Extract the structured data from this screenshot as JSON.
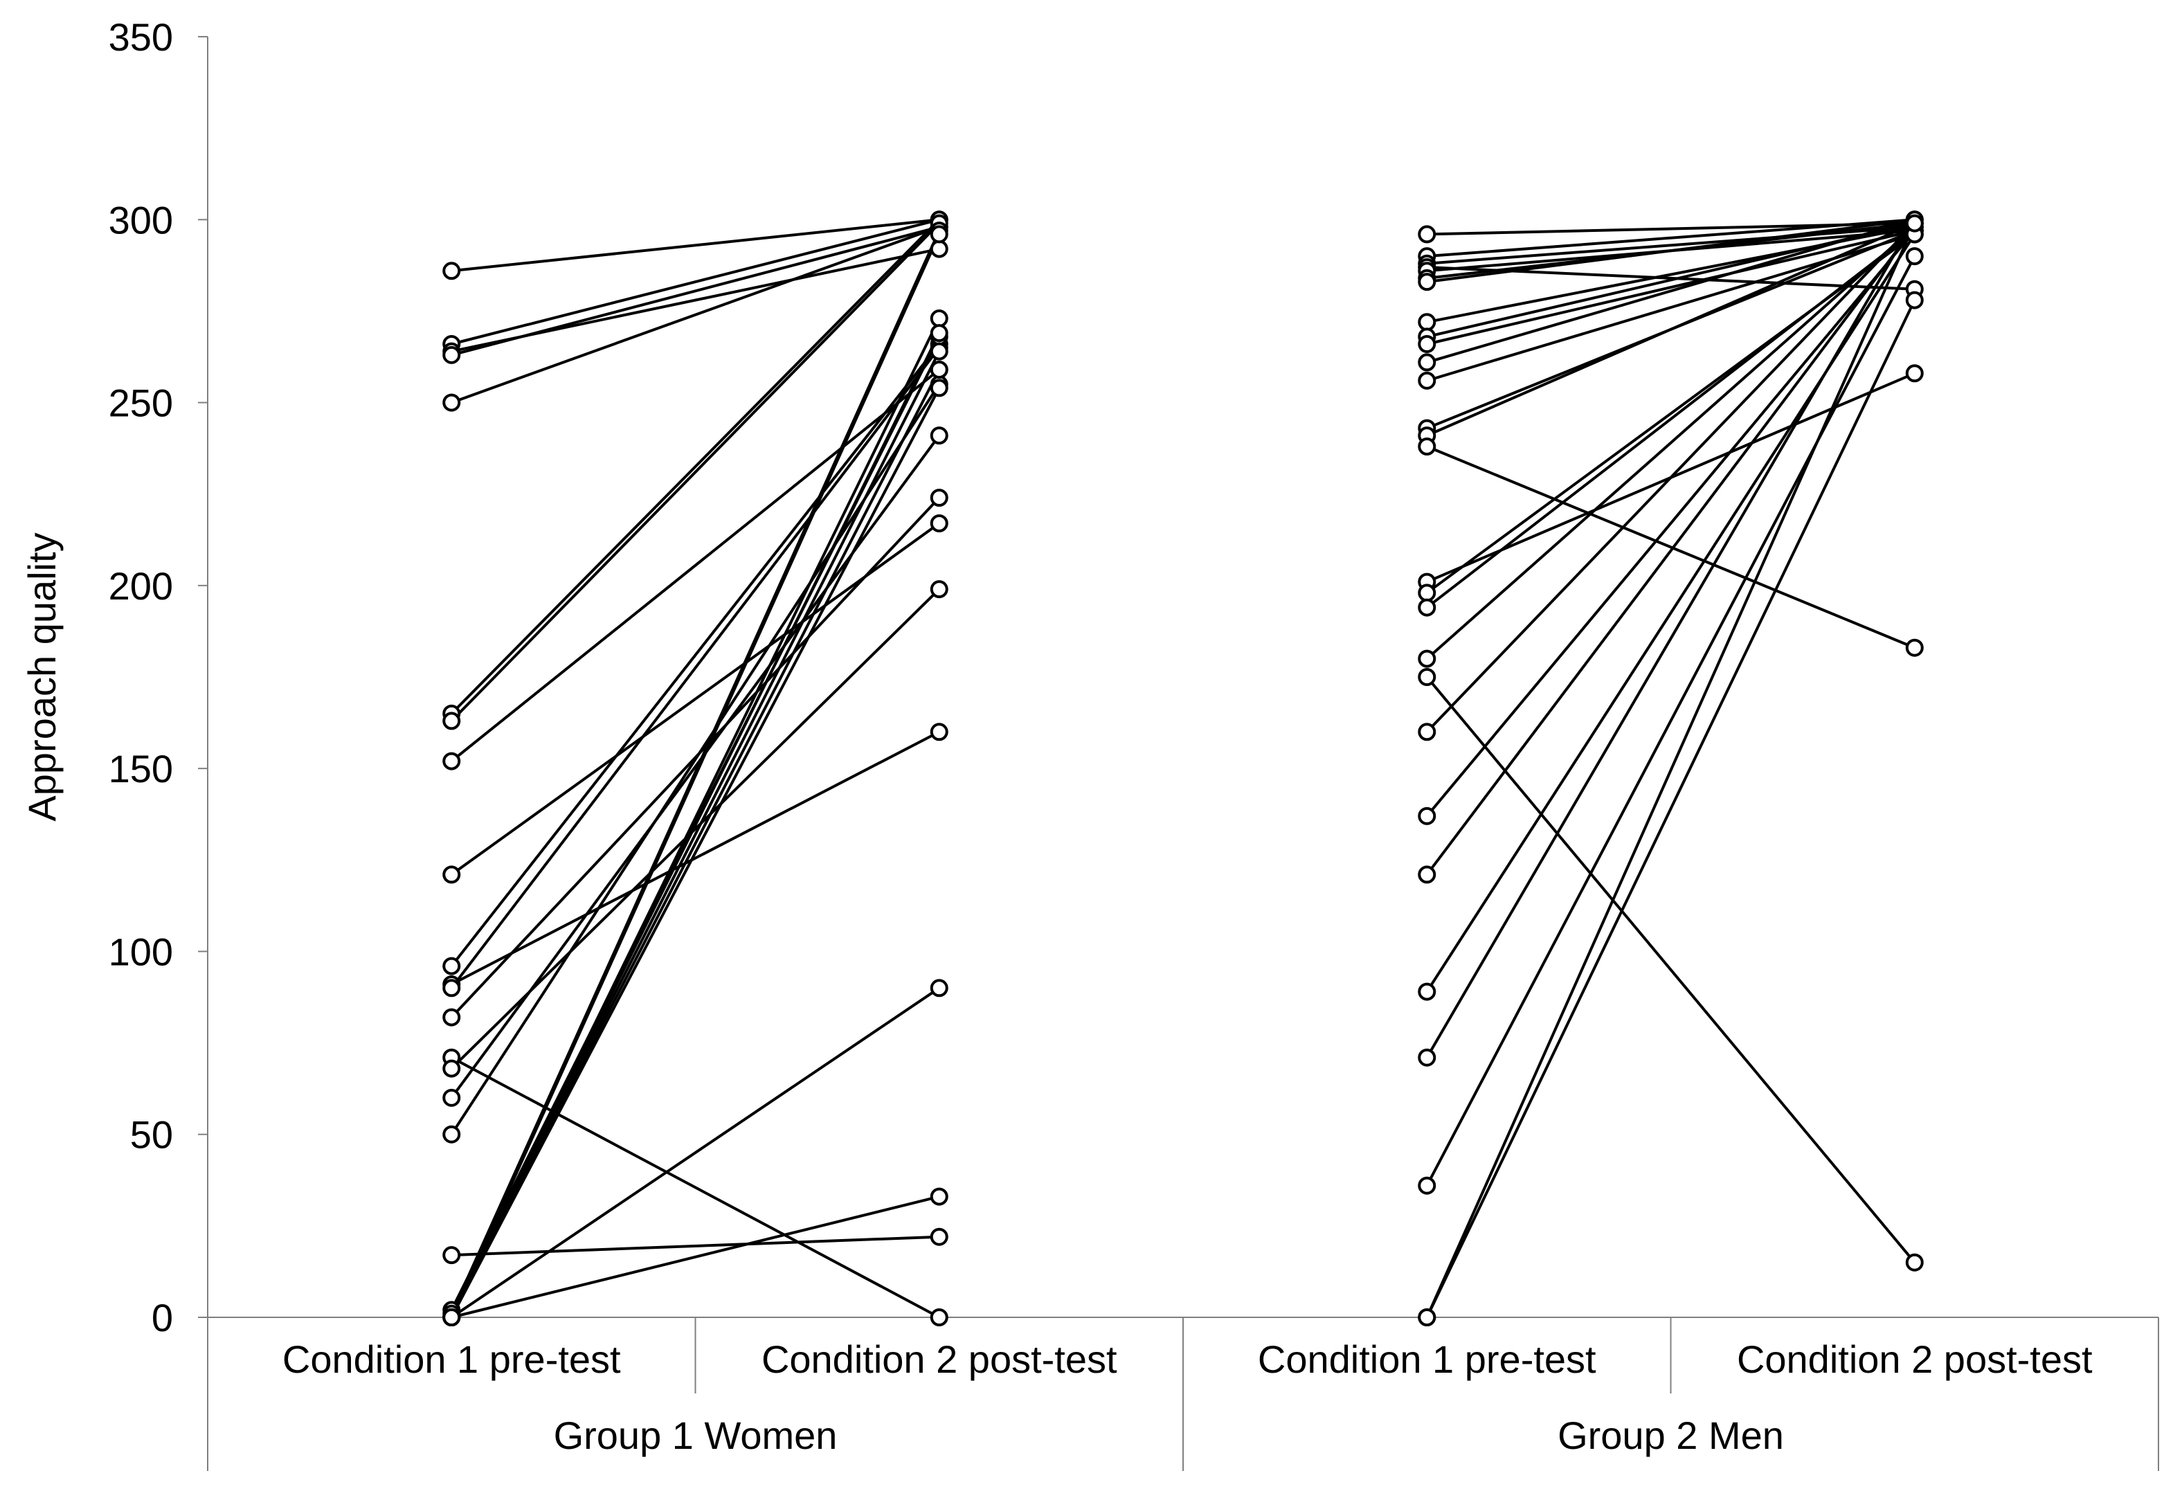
{
  "chart_data": {
    "type": "line",
    "subtype": "paired-slope",
    "title": "",
    "ylabel": "Approach quality",
    "xlabel": "",
    "ylim": [
      0,
      350
    ],
    "yticks": [
      0,
      50,
      100,
      150,
      200,
      250,
      300,
      350
    ],
    "grid": false,
    "legend": "none",
    "colors": {
      "line": "#000000",
      "marker_stroke": "#000000",
      "marker_fill": "#ffffff",
      "axis": "#808080"
    },
    "conditions": [
      "Condition 1 pre-test",
      "Condition 2 post-test"
    ],
    "groups": [
      {
        "name": "Group 1 Women",
        "pairs": [
          [
            286,
            300
          ],
          [
            266,
            300
          ],
          [
            264,
            292
          ],
          [
            263,
            298
          ],
          [
            250,
            298
          ],
          [
            165,
            300
          ],
          [
            163,
            299
          ],
          [
            152,
            259
          ],
          [
            121,
            217
          ],
          [
            96,
            266
          ],
          [
            91,
            160
          ],
          [
            90,
            265
          ],
          [
            82,
            224
          ],
          [
            71,
            0
          ],
          [
            68,
            199
          ],
          [
            60,
            241
          ],
          [
            50,
            255
          ],
          [
            17,
            22
          ],
          [
            2,
            268
          ],
          [
            1,
            297
          ],
          [
            0,
            90
          ],
          [
            0,
            33
          ],
          [
            0,
            273
          ],
          [
            0,
            269
          ],
          [
            0,
            254
          ],
          [
            0,
            259
          ],
          [
            0,
            264
          ],
          [
            0,
            296
          ]
        ]
      },
      {
        "name": "Group 2 Men",
        "pairs": [
          [
            296,
            299
          ],
          [
            290,
            300
          ],
          [
            288,
            298
          ],
          [
            287,
            281
          ],
          [
            286,
            297
          ],
          [
            284,
            299
          ],
          [
            283,
            300
          ],
          [
            272,
            298
          ],
          [
            268,
            299
          ],
          [
            266,
            297
          ],
          [
            261,
            300
          ],
          [
            256,
            296
          ],
          [
            243,
            297
          ],
          [
            241,
            299
          ],
          [
            238,
            183
          ],
          [
            201,
            258
          ],
          [
            198,
            296
          ],
          [
            194,
            297
          ],
          [
            180,
            298
          ],
          [
            175,
            15
          ],
          [
            160,
            299
          ],
          [
            137,
            297
          ],
          [
            121,
            298
          ],
          [
            89,
            296
          ],
          [
            71,
            300
          ],
          [
            36,
            290
          ],
          [
            0,
            299
          ],
          [
            0,
            278
          ]
        ]
      }
    ]
  }
}
